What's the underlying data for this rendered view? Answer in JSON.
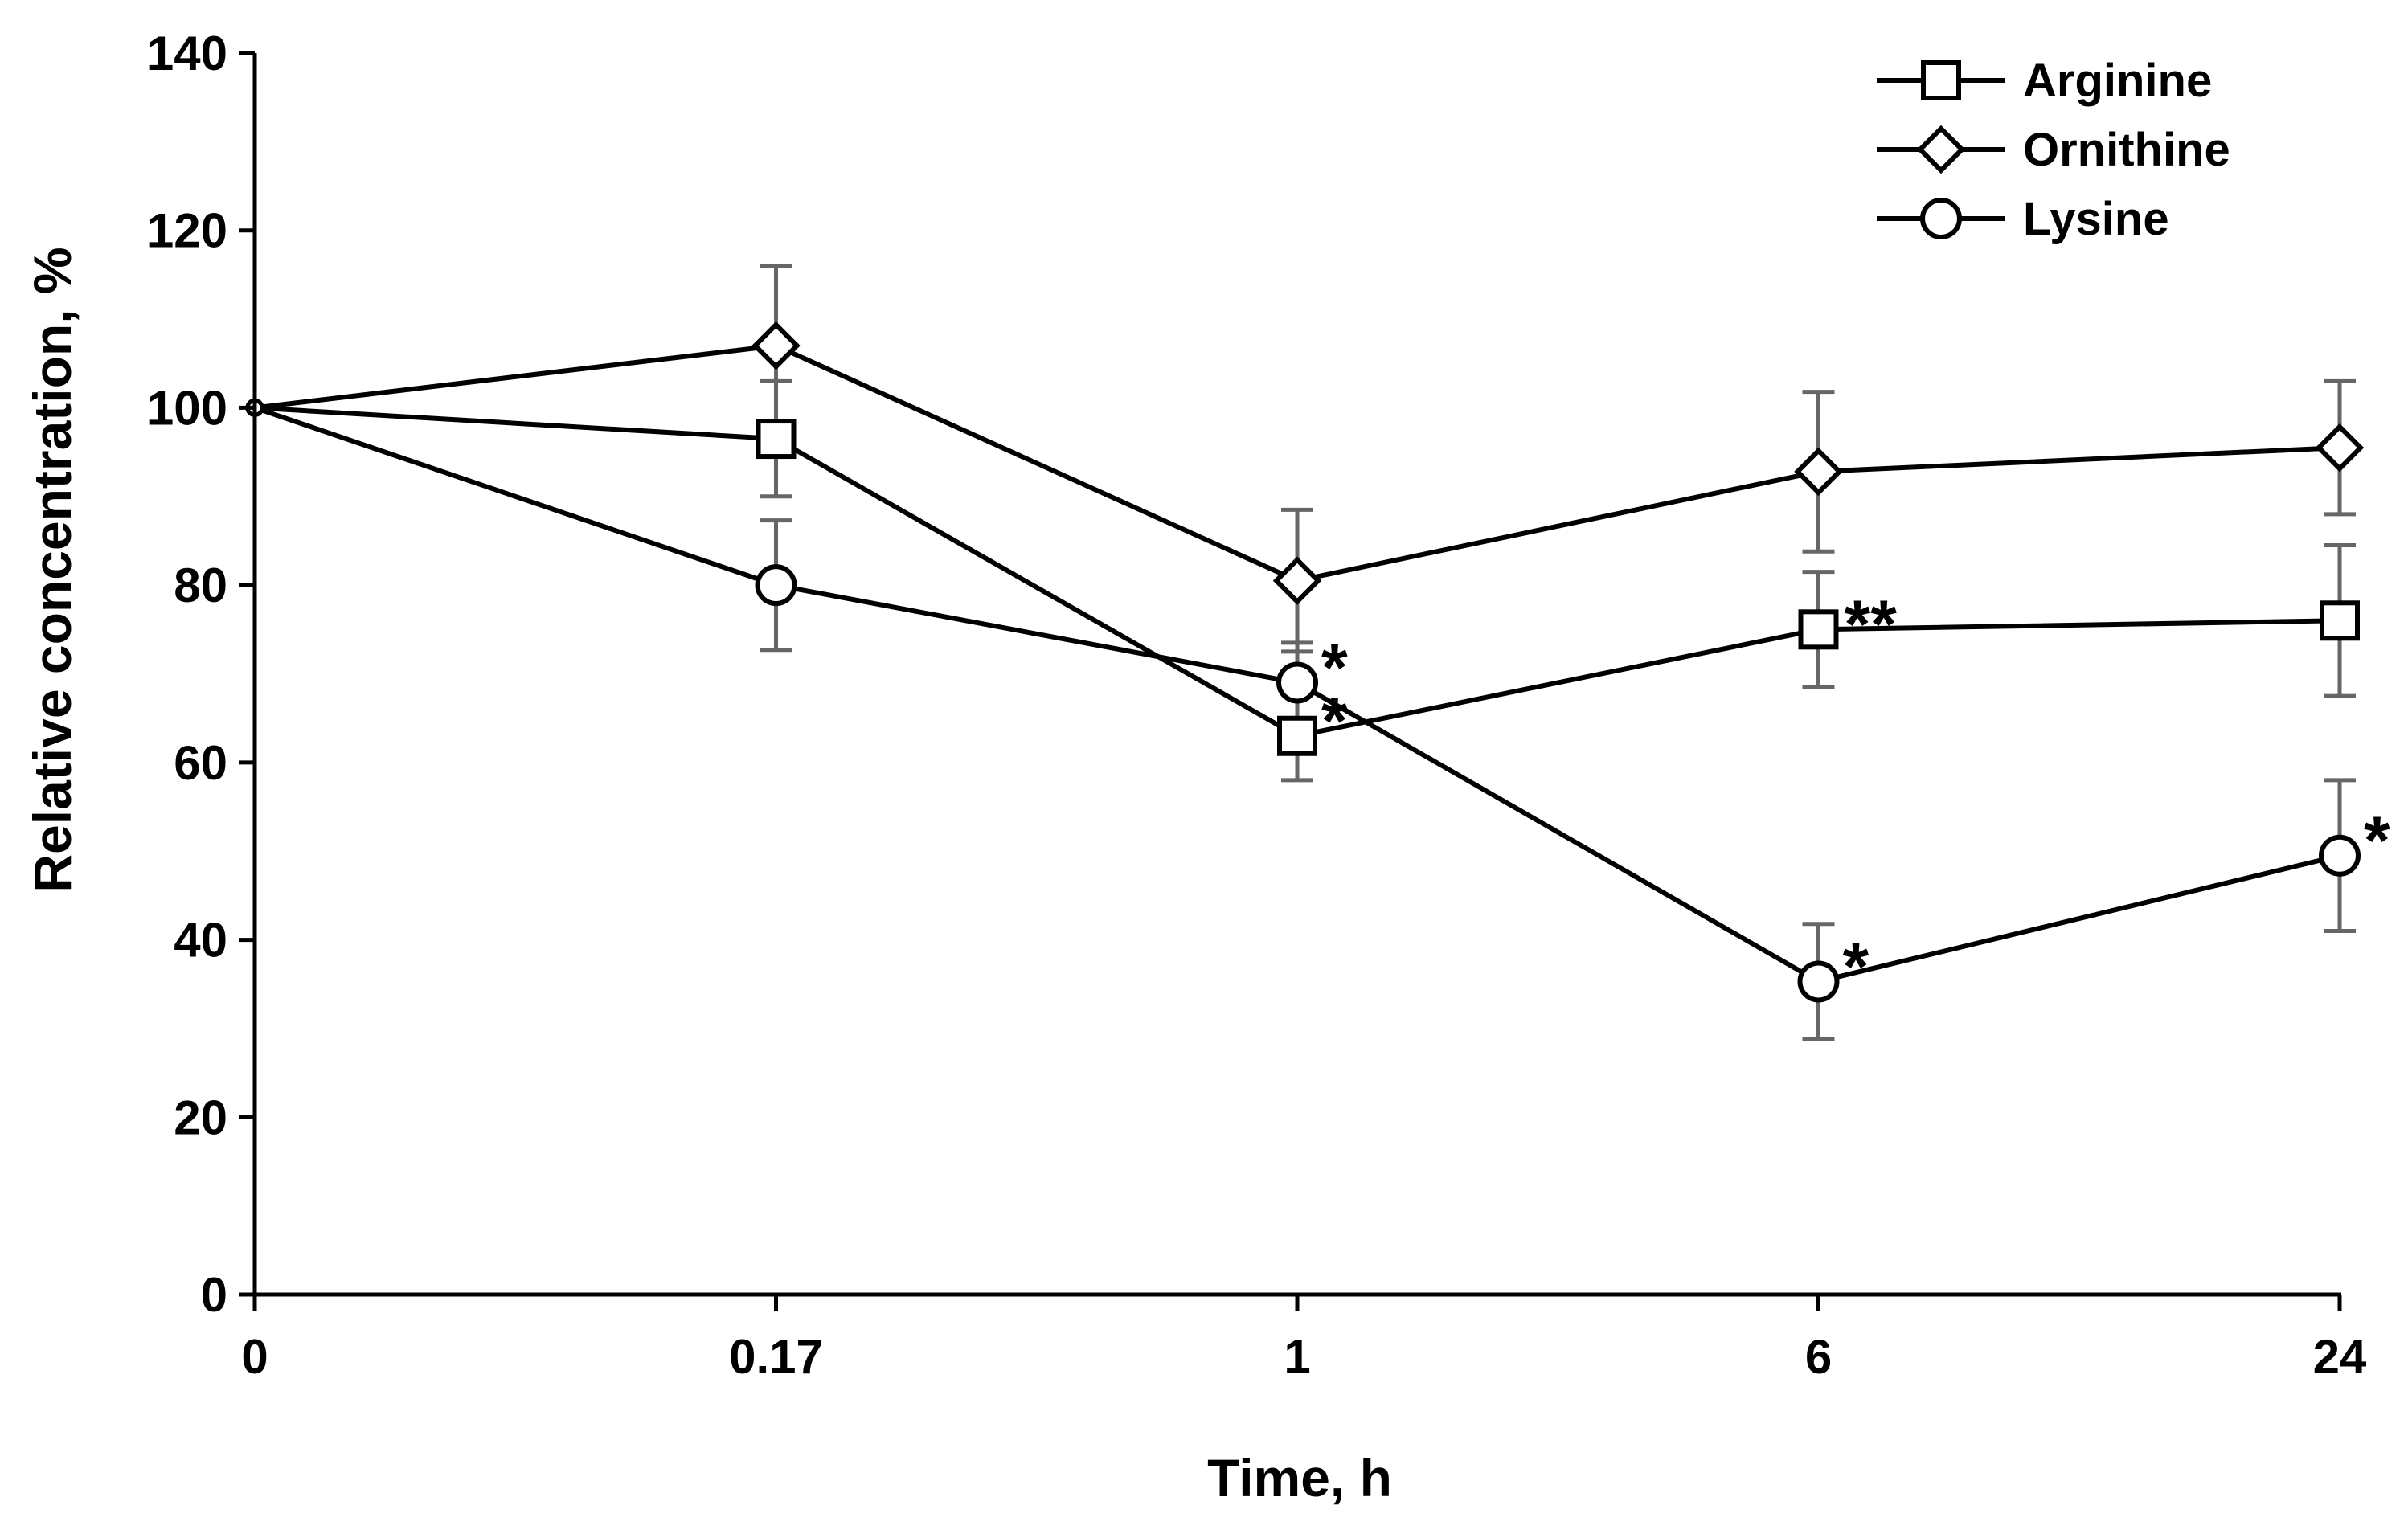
{
  "chart_data": {
    "type": "line",
    "title": "",
    "xlabel": "Time, h",
    "ylabel": "Relative concentration, %",
    "x": [
      "0",
      "0.17",
      "1",
      "6",
      "24"
    ],
    "ylim": [
      0,
      140
    ],
    "yticks": [
      0,
      20,
      40,
      60,
      80,
      100,
      120,
      140
    ],
    "grid": false,
    "legend_position": "top-right",
    "series": [
      {
        "name": "Arginine",
        "marker": "square",
        "values": [
          100,
          96.5,
          63,
          75,
          76
        ],
        "errors": [
          0,
          6.5,
          5,
          6.5,
          8.5
        ],
        "significance": [
          "",
          "",
          "*",
          "**",
          ""
        ]
      },
      {
        "name": "Ornithine",
        "marker": "diamond",
        "values": [
          100,
          107,
          80.5,
          92.8,
          95.5
        ],
        "errors": [
          0,
          9,
          8,
          9,
          7.5
        ],
        "significance": [
          "",
          "",
          "",
          "",
          ""
        ]
      },
      {
        "name": "Lysine",
        "marker": "circle",
        "values": [
          100,
          80,
          69,
          35.3,
          49.5
        ],
        "errors": [
          0,
          7.3,
          4.5,
          6.5,
          8.5
        ],
        "significance": [
          "",
          "",
          "*",
          "*",
          "*"
        ]
      }
    ]
  }
}
